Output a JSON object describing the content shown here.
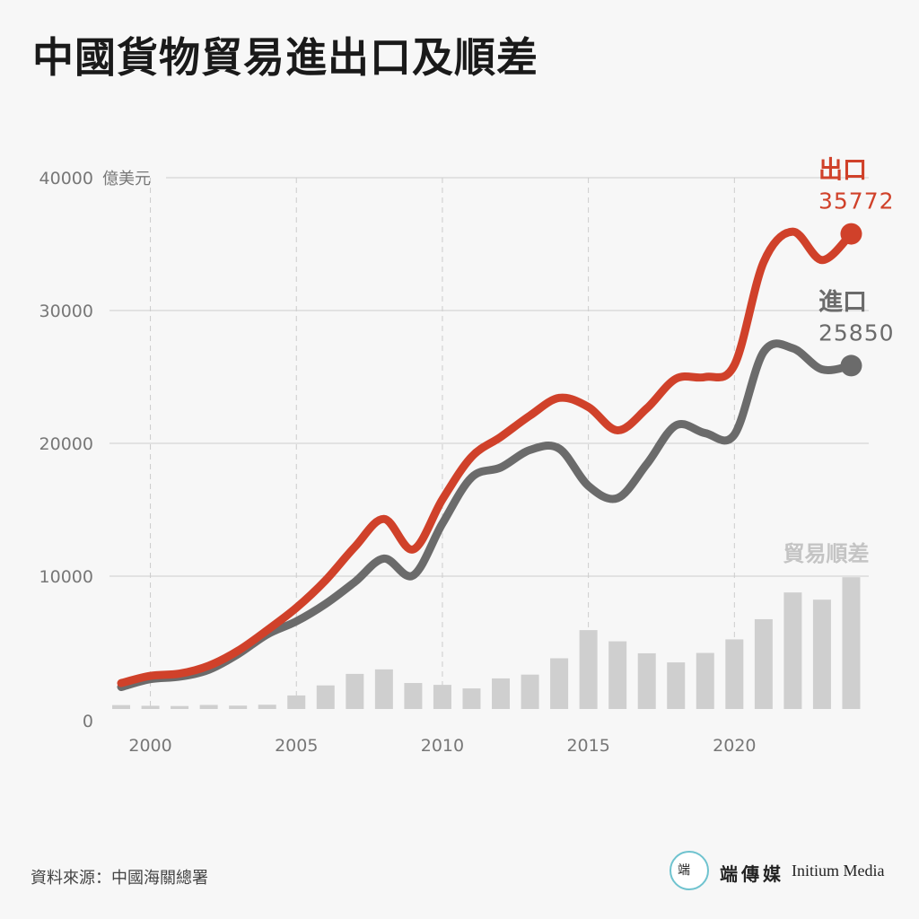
{
  "title": "中國貨物貿易進出口及順差",
  "source": "資料來源：中國海關總署",
  "brand": {
    "zh": "端傳媒",
    "en": "Initium Media",
    "mark": "端"
  },
  "colors": {
    "exports": "#d0412a",
    "imports": "#6b6b6b",
    "surplus": "#cfcfcf",
    "grid": "#cccccc",
    "axis_text": "#777777"
  },
  "chart_data": {
    "type": "line",
    "unit": "億美元",
    "ylim": [
      0,
      40000
    ],
    "y_ticks": [
      0,
      10000,
      20000,
      30000,
      40000
    ],
    "x_ticks": [
      2000,
      2005,
      2010,
      2015,
      2020
    ],
    "grid": true,
    "x": [
      1999,
      2000,
      2001,
      2002,
      2003,
      2004,
      2005,
      2006,
      2007,
      2008,
      2009,
      2010,
      2011,
      2012,
      2013,
      2014,
      2015,
      2016,
      2017,
      2018,
      2019,
      2020,
      2021,
      2022,
      2023,
      2024
    ],
    "series": [
      {
        "name": "出口",
        "kind": "line",
        "end_label": "35772",
        "values": [
          1949,
          2492,
          2661,
          3256,
          4382,
          5933,
          7620,
          9689,
          12200,
          14307,
          12016,
          15778,
          18984,
          20487,
          22090,
          23423,
          22735,
          20976,
          22633,
          24867,
          24990,
          25900,
          33640,
          35936,
          33800,
          35772
        ]
      },
      {
        "name": "進口",
        "kind": "line",
        "end_label": "25850",
        "values": [
          1657,
          2251,
          2436,
          2952,
          4128,
          5614,
          6600,
          7915,
          9561,
          11326,
          10059,
          13962,
          17435,
          18184,
          19500,
          19603,
          16796,
          15879,
          18438,
          21357,
          20769,
          20660,
          26880,
          27160,
          25568,
          25850
        ]
      },
      {
        "name": "貿易順差",
        "kind": "bar",
        "values": [
          292,
          241,
          225,
          304,
          254,
          319,
          1020,
          1775,
          2643,
          2981,
          1957,
          1815,
          1549,
          2303,
          2590,
          3820,
          5939,
          5097,
          4195,
          3509,
          4221,
          5240,
          6760,
          8776,
          8232,
          9922
        ]
      }
    ]
  }
}
